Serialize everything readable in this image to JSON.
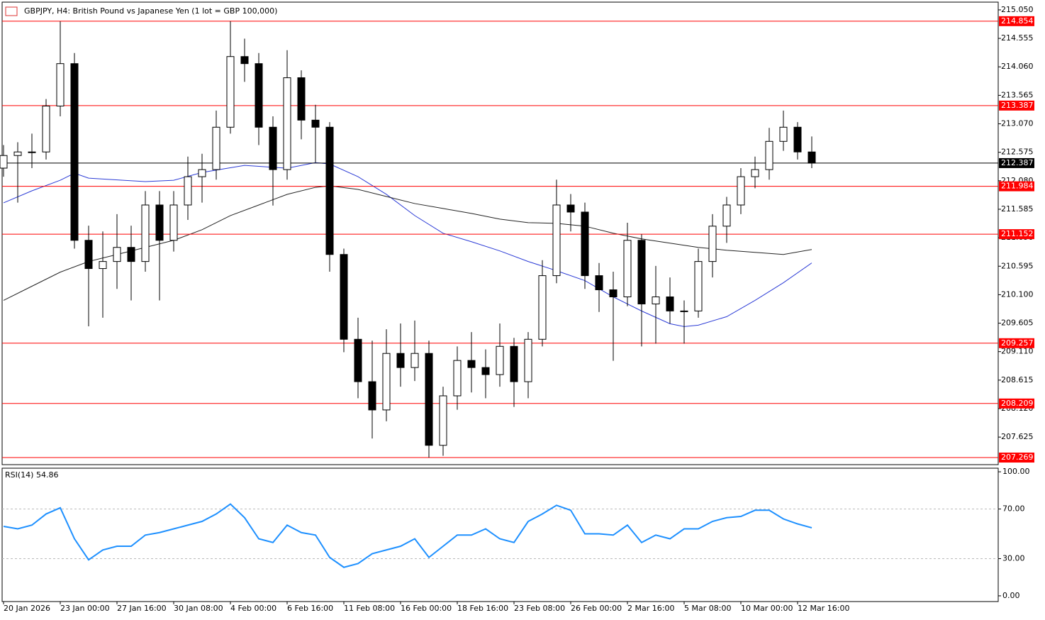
{
  "chart_data": [
    {
      "type": "candlestick",
      "title": "GBPJPY, H4:  British Pound vs Japanese Yen (1 lot = GBP 100,000)",
      "x": [
        0,
        4,
        8,
        12,
        16,
        20,
        24,
        28,
        32,
        36,
        40,
        44,
        48,
        52,
        56,
        60,
        64,
        68,
        72,
        76,
        80,
        84,
        88,
        92,
        96,
        100,
        104,
        108,
        112,
        116,
        120,
        124,
        128,
        132,
        136,
        140,
        144,
        148,
        152,
        156,
        160,
        164,
        168,
        172,
        176,
        180,
        184,
        188,
        192,
        196,
        200,
        204,
        208,
        212,
        216,
        220,
        224,
        228
      ],
      "open": [
        212.3,
        212.519,
        212.581,
        212.581,
        213.379,
        214.116,
        211.045,
        210.554,
        210.677,
        210.922,
        210.677,
        211.659,
        211.045,
        211.659,
        212.151,
        212.274,
        213.011,
        214.239,
        214.116,
        213.011,
        212.274,
        213.871,
        213.134,
        213.011,
        210.799,
        209.325,
        208.588,
        208.097,
        209.079,
        208.834,
        209.079,
        207.482,
        208.342,
        208.957,
        208.834,
        208.711,
        209.202,
        208.588,
        209.325,
        210.431,
        211.659,
        211.536,
        210.431,
        210.185,
        210.062,
        211.045,
        209.939,
        210.062,
        209.817,
        209.817,
        210.677,
        211.291,
        211.659,
        212.151,
        212.274,
        212.765,
        213.011,
        212.581
      ],
      "high": [
        212.7,
        212.75,
        212.9,
        213.5,
        214.85,
        214.3,
        211.3,
        211.2,
        211.5,
        211.3,
        211.9,
        211.9,
        211.9,
        212.5,
        212.55,
        213.3,
        214.854,
        214.55,
        214.3,
        213.2,
        214.35,
        214.0,
        213.4,
        213.1,
        210.9,
        209.7,
        209.3,
        209.5,
        209.6,
        209.65,
        209.3,
        208.5,
        209.2,
        209.45,
        209.15,
        209.6,
        209.35,
        209.45,
        210.7,
        212.1,
        211.85,
        211.7,
        210.65,
        210.5,
        211.35,
        211.15,
        210.6,
        210.4,
        210.0,
        210.9,
        211.5,
        211.8,
        212.3,
        212.5,
        213.0,
        213.3,
        213.1,
        212.85
      ],
      "low": [
        212.15,
        211.7,
        212.3,
        212.45,
        213.2,
        210.9,
        209.55,
        209.7,
        210.2,
        210.0,
        210.5,
        210.0,
        210.85,
        211.4,
        211.7,
        212.1,
        212.9,
        213.8,
        212.7,
        211.65,
        212.1,
        212.8,
        212.4,
        210.5,
        209.1,
        208.3,
        207.6,
        207.9,
        208.5,
        208.6,
        207.269,
        207.3,
        208.1,
        208.4,
        208.3,
        208.5,
        208.15,
        208.3,
        209.2,
        210.3,
        211.2,
        210.2,
        209.8,
        208.95,
        209.9,
        209.2,
        209.25,
        209.6,
        209.25,
        209.7,
        210.4,
        211.0,
        211.5,
        211.95,
        212.1,
        212.6,
        212.45,
        212.3
      ],
      "close": [
        212.519,
        212.581,
        212.581,
        213.379,
        214.116,
        211.045,
        210.554,
        210.677,
        210.922,
        210.677,
        211.659,
        211.045,
        211.659,
        212.151,
        212.274,
        213.011,
        214.239,
        214.116,
        213.011,
        212.274,
        213.871,
        213.134,
        213.011,
        210.799,
        209.325,
        208.588,
        208.097,
        209.079,
        208.834,
        209.079,
        207.482,
        208.342,
        208.957,
        208.834,
        208.711,
        209.202,
        208.588,
        209.325,
        210.431,
        211.659,
        211.536,
        210.431,
        210.185,
        210.062,
        211.045,
        209.939,
        210.062,
        209.817,
        209.817,
        210.677,
        211.291,
        211.659,
        212.151,
        212.274,
        212.765,
        213.011,
        212.581,
        212.387
      ],
      "up_color": "#ffffff",
      "down_color": "#000000",
      "series": [
        {
          "color": "#2b3bd6",
          "x": [
            0,
            8,
            16,
            20,
            24,
            40,
            48,
            56,
            68,
            80,
            88,
            92,
            100,
            108,
            116,
            124,
            132,
            140,
            148,
            156,
            164,
            172,
            180,
            188,
            192,
            196,
            204,
            212,
            220,
            228
          ],
          "values": [
            211.696,
            211.905,
            212.089,
            212.212,
            212.126,
            212.065,
            212.089,
            212.224,
            212.347,
            212.298,
            212.396,
            212.372,
            212.151,
            211.844,
            211.475,
            211.168,
            211.021,
            210.861,
            210.677,
            210.517,
            210.345,
            210.062,
            209.817,
            209.595,
            209.546,
            209.571,
            209.718,
            210.001,
            210.308,
            210.652
          ]
        },
        {
          "color": "#222222",
          "x": [
            0,
            8,
            16,
            24,
            32,
            40,
            48,
            56,
            64,
            72,
            80,
            88,
            92,
            100,
            108,
            116,
            124,
            132,
            140,
            148,
            156,
            164,
            172,
            180,
            188,
            196,
            204,
            212,
            220,
            228
          ],
          "values": [
            210.001,
            210.247,
            210.492,
            210.677,
            210.799,
            210.922,
            211.045,
            211.229,
            211.475,
            211.659,
            211.844,
            211.966,
            211.991,
            211.93,
            211.807,
            211.684,
            211.598,
            211.512,
            211.414,
            211.352,
            211.34,
            211.291,
            211.168,
            211.07,
            210.996,
            210.922,
            210.873,
            210.836,
            210.799,
            210.885
          ]
        }
      ],
      "levels": [
        214.854,
        213.387,
        211.984,
        211.152,
        209.257,
        208.209,
        207.269
      ],
      "level_color": "#ff0000",
      "last": 212.387,
      "xlim": [
        -0.4,
        280.6
      ],
      "ylim": [
        207.146,
        215.185
      ],
      "yticks": [
        {
          "value": 215.05,
          "label": "215.050"
        },
        214.555,
        {
          "value": 214.06,
          "label": "214.060"
        },
        213.565,
        {
          "value": 213.07,
          "label": "213.070"
        },
        212.575,
        {
          "value": 212.08,
          "label": "212.080"
        },
        211.585,
        {
          "value": 211.09,
          "label": "211.090"
        },
        210.595,
        {
          "value": 210.1,
          "label": "210.100"
        },
        209.605,
        {
          "value": 209.11,
          "label": "209.110"
        },
        208.615,
        {
          "value": 208.12,
          "label": "208.120"
        },
        207.625
      ]
    },
    {
      "type": "line",
      "title": "RSI(14) 54.86",
      "x": [
        0,
        4,
        8,
        12,
        16,
        20,
        24,
        28,
        32,
        36,
        40,
        44,
        48,
        52,
        56,
        60,
        64,
        68,
        72,
        76,
        80,
        84,
        88,
        92,
        96,
        100,
        104,
        108,
        112,
        116,
        120,
        124,
        128,
        132,
        136,
        140,
        144,
        148,
        152,
        156,
        160,
        164,
        168,
        172,
        176,
        180,
        184,
        188,
        192,
        196,
        200,
        204,
        208,
        212,
        216,
        220,
        224,
        228
      ],
      "values": [
        56,
        54,
        57,
        66,
        71,
        46,
        29,
        37,
        40,
        40,
        49,
        51,
        54,
        57,
        60,
        66,
        74,
        63,
        46,
        43,
        57,
        51,
        49,
        31,
        23,
        26,
        34,
        37,
        40,
        46,
        31,
        40,
        49,
        49,
        54,
        46,
        43,
        60,
        66,
        73,
        69,
        50,
        50,
        49,
        57,
        43,
        49,
        46,
        54,
        54,
        60,
        63,
        64,
        69,
        69,
        62,
        58,
        54.86
      ],
      "color": "#1e90ff",
      "xlim": [
        -0.4,
        280.6
      ],
      "ylim": [
        -4.6,
        102.9
      ],
      "yticks": [
        {
          "value": 100,
          "label": "100.00"
        },
        {
          "value": 70,
          "label": "70.00"
        },
        {
          "value": 30,
          "label": "30.00"
        },
        {
          "value": 0,
          "label": "0.00"
        }
      ],
      "dashed_levels": [
        70,
        30
      ],
      "xticks": [
        {
          "value": 0,
          "label": "20 Jan 2026"
        },
        {
          "value": 16,
          "label": "23 Jan 00:00"
        },
        {
          "value": 32,
          "label": "27 Jan 16:00"
        },
        {
          "value": 48,
          "label": "30 Jan 08:00"
        },
        {
          "value": 64,
          "label": "4 Feb 00:00"
        },
        {
          "value": 80,
          "label": "6 Feb 16:00"
        },
        {
          "value": 96,
          "label": "11 Feb 08:00"
        },
        {
          "value": 112,
          "label": "16 Feb 00:00"
        },
        {
          "value": 128,
          "label": "18 Feb 16:00"
        },
        {
          "value": 144,
          "label": "23 Feb 08:00"
        },
        {
          "value": 160,
          "label": "26 Feb 00:00"
        },
        {
          "value": 176,
          "label": "2 Mar 16:00"
        },
        {
          "value": 192,
          "label": "5 Mar 08:00"
        },
        {
          "value": 208,
          "label": "10 Mar 00:00"
        },
        {
          "value": 224,
          "label": "12 Mar 16:00"
        }
      ]
    }
  ]
}
